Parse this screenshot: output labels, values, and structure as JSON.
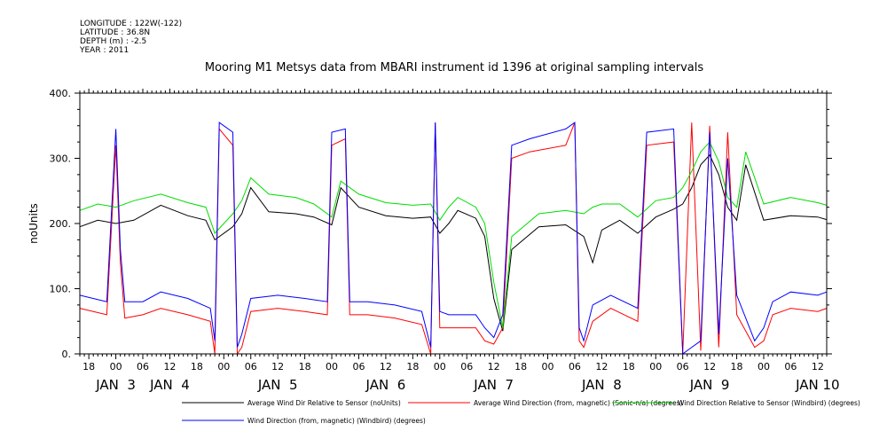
{
  "metadata": {
    "longitude": "LONGITUDE : 122W(-122)",
    "latitude": "LATITUDE : 36.8N",
    "depth": "DEPTH (m) : -2.5",
    "year": "YEAR : 2011"
  },
  "chart_data": {
    "type": "line",
    "title": "Mooring M1 Metsys data from MBARI instrument id 1396 at original sampling intervals",
    "ylabel": "noUnits",
    "xlabel": "",
    "ylim": [
      0,
      400
    ],
    "xlim_hours": [
      -8,
      158
    ],
    "y_ticks": [
      {
        "v": 0,
        "label": "0."
      },
      {
        "v": 100,
        "label": "100."
      },
      {
        "v": 200,
        "label": "200."
      },
      {
        "v": 300,
        "label": "300."
      },
      {
        "v": 400,
        "label": "400."
      }
    ],
    "x_hour_ticks": [
      {
        "h": -6,
        "label": "18"
      },
      {
        "h": 0,
        "label": "00"
      },
      {
        "h": 6,
        "label": "06"
      },
      {
        "h": 12,
        "label": "12"
      },
      {
        "h": 18,
        "label": "18"
      },
      {
        "h": 24,
        "label": "00"
      },
      {
        "h": 30,
        "label": "06"
      },
      {
        "h": 36,
        "label": "12"
      },
      {
        "h": 42,
        "label": "18"
      },
      {
        "h": 48,
        "label": "00"
      },
      {
        "h": 54,
        "label": "06"
      },
      {
        "h": 60,
        "label": "12"
      },
      {
        "h": 66,
        "label": "18"
      },
      {
        "h": 72,
        "label": "00"
      },
      {
        "h": 78,
        "label": "06"
      },
      {
        "h": 84,
        "label": "12"
      },
      {
        "h": 90,
        "label": "18"
      },
      {
        "h": 96,
        "label": "00"
      },
      {
        "h": 102,
        "label": "06"
      },
      {
        "h": 108,
        "label": "12"
      },
      {
        "h": 114,
        "label": "18"
      },
      {
        "h": 120,
        "label": "00"
      },
      {
        "h": 126,
        "label": "06"
      },
      {
        "h": 132,
        "label": "12"
      },
      {
        "h": 138,
        "label": "18"
      },
      {
        "h": 144,
        "label": "00"
      },
      {
        "h": 150,
        "label": "06"
      },
      {
        "h": 156,
        "label": "12"
      }
    ],
    "x_date_labels": [
      {
        "h": 0,
        "label": "JAN  3"
      },
      {
        "h": 12,
        "label": "JAN  4"
      },
      {
        "h": 36,
        "label": "JAN  5"
      },
      {
        "h": 60,
        "label": "JAN  6"
      },
      {
        "h": 84,
        "label": "JAN  7"
      },
      {
        "h": 108,
        "label": "JAN  8"
      },
      {
        "h": 132,
        "label": "JAN  9"
      },
      {
        "h": 156,
        "label": "JAN 10"
      }
    ],
    "series": [
      {
        "name": "Average Wind Dir Relative to Sensor (noUnits)",
        "color": "#000000",
        "points": [
          [
            -8,
            195
          ],
          [
            -4,
            205
          ],
          [
            0,
            200
          ],
          [
            4,
            205
          ],
          [
            10,
            228
          ],
          [
            16,
            212
          ],
          [
            20,
            205
          ],
          [
            22,
            175
          ],
          [
            26,
            195
          ],
          [
            28,
            215
          ],
          [
            30,
            255
          ],
          [
            34,
            218
          ],
          [
            40,
            215
          ],
          [
            44,
            210
          ],
          [
            48,
            198
          ],
          [
            50,
            255
          ],
          [
            54,
            225
          ],
          [
            60,
            212
          ],
          [
            66,
            208
          ],
          [
            70,
            210
          ],
          [
            72,
            185
          ],
          [
            74,
            200
          ],
          [
            76,
            220
          ],
          [
            80,
            208
          ],
          [
            82,
            180
          ],
          [
            84,
            85
          ],
          [
            86,
            35
          ],
          [
            88,
            160
          ],
          [
            94,
            195
          ],
          [
            100,
            198
          ],
          [
            104,
            180
          ],
          [
            106,
            140
          ],
          [
            108,
            190
          ],
          [
            112,
            205
          ],
          [
            116,
            185
          ],
          [
            120,
            210
          ],
          [
            124,
            222
          ],
          [
            126,
            230
          ],
          [
            128,
            255
          ],
          [
            130,
            290
          ],
          [
            132,
            305
          ],
          [
            134,
            275
          ],
          [
            136,
            225
          ],
          [
            138,
            205
          ],
          [
            140,
            290
          ],
          [
            144,
            205
          ],
          [
            150,
            212
          ],
          [
            156,
            210
          ],
          [
            158,
            206
          ]
        ]
      },
      {
        "name": "Average Wind Direction (from, magnetic) (Sonic-n/a) (degrees)",
        "color": "#ff0000",
        "points": [
          [
            -8,
            70
          ],
          [
            -2,
            60
          ],
          [
            0,
            320
          ],
          [
            1,
            140
          ],
          [
            2,
            55
          ],
          [
            6,
            60
          ],
          [
            10,
            70
          ],
          [
            16,
            60
          ],
          [
            21,
            50
          ],
          [
            22,
            0
          ],
          [
            23,
            345
          ],
          [
            26,
            320
          ],
          [
            27,
            0
          ],
          [
            28,
            10
          ],
          [
            30,
            65
          ],
          [
            36,
            70
          ],
          [
            42,
            65
          ],
          [
            47,
            60
          ],
          [
            48,
            320
          ],
          [
            51,
            330
          ],
          [
            52,
            60
          ],
          [
            56,
            60
          ],
          [
            62,
            55
          ],
          [
            68,
            45
          ],
          [
            70,
            0
          ],
          [
            71,
            355
          ],
          [
            72,
            40
          ],
          [
            74,
            40
          ],
          [
            80,
            40
          ],
          [
            82,
            20
          ],
          [
            84,
            15
          ],
          [
            86,
            40
          ],
          [
            88,
            300
          ],
          [
            92,
            310
          ],
          [
            100,
            320
          ],
          [
            102,
            355
          ],
          [
            103,
            20
          ],
          [
            104,
            10
          ],
          [
            106,
            50
          ],
          [
            110,
            70
          ],
          [
            116,
            50
          ],
          [
            118,
            320
          ],
          [
            124,
            325
          ],
          [
            126,
            0
          ],
          [
            128,
            355
          ],
          [
            130,
            5
          ],
          [
            132,
            350
          ],
          [
            134,
            10
          ],
          [
            136,
            340
          ],
          [
            138,
            60
          ],
          [
            142,
            10
          ],
          [
            144,
            20
          ],
          [
            146,
            60
          ],
          [
            150,
            70
          ],
          [
            156,
            65
          ],
          [
            158,
            70
          ]
        ]
      },
      {
        "name": "Wind Direction Relative to Sensor (Windbird) (degrees)",
        "color": "#00dd00",
        "points": [
          [
            -8,
            220
          ],
          [
            -4,
            230
          ],
          [
            0,
            225
          ],
          [
            4,
            235
          ],
          [
            10,
            245
          ],
          [
            16,
            232
          ],
          [
            20,
            225
          ],
          [
            22,
            185
          ],
          [
            26,
            215
          ],
          [
            28,
            235
          ],
          [
            30,
            270
          ],
          [
            34,
            245
          ],
          [
            40,
            240
          ],
          [
            44,
            230
          ],
          [
            48,
            210
          ],
          [
            50,
            265
          ],
          [
            54,
            245
          ],
          [
            60,
            232
          ],
          [
            66,
            228
          ],
          [
            70,
            230
          ],
          [
            72,
            205
          ],
          [
            74,
            225
          ],
          [
            76,
            240
          ],
          [
            80,
            225
          ],
          [
            82,
            200
          ],
          [
            84,
            110
          ],
          [
            86,
            40
          ],
          [
            88,
            180
          ],
          [
            94,
            215
          ],
          [
            100,
            220
          ],
          [
            104,
            215
          ],
          [
            106,
            225
          ],
          [
            108,
            230
          ],
          [
            112,
            230
          ],
          [
            116,
            210
          ],
          [
            120,
            235
          ],
          [
            124,
            240
          ],
          [
            126,
            255
          ],
          [
            128,
            280
          ],
          [
            130,
            310
          ],
          [
            132,
            325
          ],
          [
            134,
            295
          ],
          [
            136,
            240
          ],
          [
            138,
            225
          ],
          [
            140,
            310
          ],
          [
            144,
            230
          ],
          [
            150,
            240
          ],
          [
            156,
            232
          ],
          [
            158,
            228
          ]
        ]
      },
      {
        "name": "Wind Direction (from, magnetic) (Windbird) (degrees)",
        "color": "#0000ff",
        "points": [
          [
            -8,
            90
          ],
          [
            -2,
            80
          ],
          [
            0,
            345
          ],
          [
            1,
            160
          ],
          [
            2,
            80
          ],
          [
            6,
            80
          ],
          [
            10,
            95
          ],
          [
            16,
            85
          ],
          [
            21,
            70
          ],
          [
            22,
            20
          ],
          [
            23,
            355
          ],
          [
            26,
            340
          ],
          [
            27,
            10
          ],
          [
            28,
            30
          ],
          [
            30,
            85
          ],
          [
            36,
            90
          ],
          [
            42,
            85
          ],
          [
            47,
            80
          ],
          [
            48,
            340
          ],
          [
            51,
            345
          ],
          [
            52,
            80
          ],
          [
            56,
            80
          ],
          [
            62,
            75
          ],
          [
            68,
            65
          ],
          [
            70,
            10
          ],
          [
            71,
            355
          ],
          [
            72,
            65
          ],
          [
            74,
            60
          ],
          [
            80,
            60
          ],
          [
            82,
            40
          ],
          [
            84,
            25
          ],
          [
            86,
            60
          ],
          [
            88,
            320
          ],
          [
            92,
            330
          ],
          [
            100,
            345
          ],
          [
            102,
            355
          ],
          [
            103,
            40
          ],
          [
            104,
            20
          ],
          [
            106,
            75
          ],
          [
            110,
            90
          ],
          [
            116,
            70
          ],
          [
            118,
            340
          ],
          [
            124,
            345
          ],
          [
            126,
            0
          ],
          [
            128,
            10
          ],
          [
            130,
            20
          ],
          [
            132,
            340
          ],
          [
            134,
            30
          ],
          [
            136,
            300
          ],
          [
            138,
            90
          ],
          [
            142,
            20
          ],
          [
            144,
            40
          ],
          [
            146,
            80
          ],
          [
            150,
            95
          ],
          [
            156,
            90
          ],
          [
            158,
            95
          ]
        ]
      }
    ],
    "legend": [
      {
        "label": "Average Wind Dir Relative to Sensor (noUnits)",
        "color": "#000000"
      },
      {
        "label": "Average Wind Direction (from, magnetic) (Sonic-n/a) (degrees)",
        "color": "#ff0000"
      },
      {
        "label": "Wind Direction Relative to Sensor (Windbird) (degrees)",
        "color": "#00dd00"
      },
      {
        "label": "Wind Direction (from, magnetic) (Windbird) (degrees)",
        "color": "#0000ff"
      }
    ]
  }
}
